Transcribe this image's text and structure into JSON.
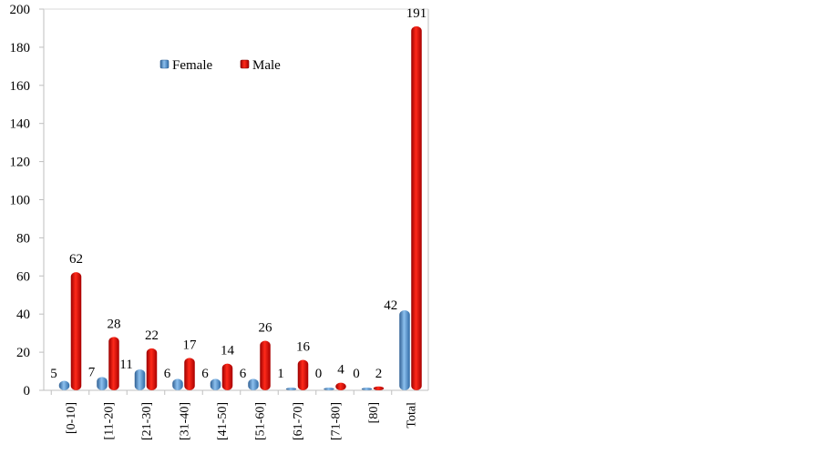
{
  "chart_data": {
    "type": "bar",
    "categories": [
      "[0-10]",
      "[11-20]",
      "[21-30]",
      "[31-40]",
      "[41-50]",
      "[51-60]",
      "[61-70]",
      "[71-80]",
      "[80]",
      "Total"
    ],
    "series": [
      {
        "name": "Female",
        "values": [
          5,
          7,
          11,
          6,
          6,
          6,
          1,
          0,
          0,
          42
        ],
        "color": "#4a8fd0"
      },
      {
        "name": "Male",
        "values": [
          62,
          28,
          22,
          17,
          14,
          26,
          16,
          4,
          2,
          191
        ],
        "color": "#ee0000"
      }
    ],
    "yticks": [
      0,
      20,
      40,
      60,
      80,
      100,
      120,
      140,
      160,
      180,
      200
    ],
    "ylim": [
      0,
      200
    ],
    "grid": false,
    "legend_position": "top-center",
    "data_labels": true
  }
}
